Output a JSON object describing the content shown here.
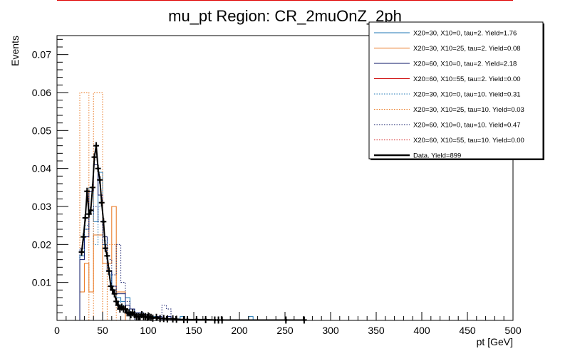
{
  "chart_data": {
    "type": "histogram",
    "title": "mu_pt Region: CR_2muOnZ_2ph",
    "xlabel": "pt [GeV]",
    "ylabel": "Events",
    "xlim": [
      0,
      500
    ],
    "ylim": [
      0,
      0.075
    ],
    "x_ticks": [
      "0",
      "50",
      "100",
      "150",
      "200",
      "250",
      "300",
      "350",
      "400",
      "450",
      "500"
    ],
    "y_ticks": [
      "0.01",
      "0.02",
      "0.03",
      "0.04",
      "0.05",
      "0.06",
      "0.07"
    ],
    "y_tick_values": [
      0.01,
      0.02,
      0.03,
      0.04,
      0.05,
      0.06,
      0.07
    ],
    "legend_position": "top-right",
    "series": [
      {
        "name": "X20=30, X10=0, tau=2. Yield=1.76",
        "color": "#1f77b4",
        "style": "solid",
        "bin_width": 5,
        "bins": [
          [
            25,
            0.017
          ],
          [
            30,
            0.024
          ],
          [
            35,
            0.035
          ],
          [
            40,
            0.026
          ],
          [
            45,
            0.039
          ],
          [
            50,
            0.02
          ],
          [
            55,
            0.013
          ],
          [
            60,
            0.008
          ],
          [
            65,
            0.006
          ],
          [
            70,
            0.005
          ],
          [
            75,
            0.006
          ],
          [
            80,
            0.003
          ],
          [
            85,
            0.002
          ],
          [
            90,
            0.002
          ],
          [
            95,
            0.001
          ],
          [
            105,
            0.001
          ],
          [
            135,
            0.001
          ],
          [
            210,
            0.001
          ]
        ]
      },
      {
        "name": "X20=30, X10=25, tau=2. Yield=0.08",
        "color": "#e8731a",
        "style": "solid",
        "bin_width": 5,
        "bins": [
          [
            25,
            0.0075
          ],
          [
            30,
            0.015
          ],
          [
            35,
            0.0075
          ],
          [
            40,
            0.0225
          ],
          [
            45,
            0.0225
          ],
          [
            50,
            0.015
          ],
          [
            55,
            0.015
          ],
          [
            60,
            0.03
          ],
          [
            65,
            0.0075
          ],
          [
            70,
            0.0075
          ]
        ]
      },
      {
        "name": "X20=60, X10=0, tau=2. Yield=2.18",
        "color": "#0a1466",
        "style": "solid",
        "bin_width": 5,
        "bins": [
          [
            25,
            0.016
          ],
          [
            30,
            0.022
          ],
          [
            35,
            0.034
          ],
          [
            40,
            0.041
          ],
          [
            45,
            0.033
          ],
          [
            50,
            0.022
          ],
          [
            55,
            0.013
          ],
          [
            60,
            0.009
          ],
          [
            65,
            0.007
          ],
          [
            70,
            0.007
          ],
          [
            75,
            0.004
          ],
          [
            80,
            0.003
          ],
          [
            85,
            0.002
          ],
          [
            90,
            0.002
          ],
          [
            95,
            0.0015
          ],
          [
            100,
            0.001
          ],
          [
            110,
            0.001
          ],
          [
            120,
            0.001
          ]
        ]
      },
      {
        "name": "X20=60, X10=55, tau=2. Yield=0.00",
        "color": "#cc0000",
        "style": "solid",
        "bin_width": 5,
        "bins": []
      },
      {
        "name": "X20=30, X10=0, tau=10. Yield=0.31",
        "color": "#1f77b4",
        "style": "dotted",
        "bin_width": 5,
        "bins": [
          [
            25,
            0.018
          ],
          [
            30,
            0.025
          ],
          [
            35,
            0.03
          ],
          [
            40,
            0.02
          ],
          [
            45,
            0.03
          ],
          [
            50,
            0.021
          ],
          [
            55,
            0.012
          ],
          [
            60,
            0.008
          ],
          [
            65,
            0.005
          ],
          [
            70,
            0.004
          ],
          [
            75,
            0.003
          ]
        ]
      },
      {
        "name": "X20=30, X10=25, tau=10. Yield=0.03",
        "color": "#e8731a",
        "style": "dotted",
        "bin_width": 5,
        "bins": [
          [
            25,
            0.06
          ],
          [
            30,
            0.06
          ],
          [
            35,
            0.0
          ],
          [
            40,
            0.06
          ],
          [
            45,
            0.06
          ],
          [
            50,
            0.0
          ],
          [
            55,
            0.02
          ],
          [
            60,
            0.02
          ],
          [
            65,
            0.0
          ],
          [
            70,
            0.0
          ]
        ]
      },
      {
        "name": "X20=60, X10=0, tau=10. Yield=0.47",
        "color": "#0a1466",
        "style": "dotted",
        "bin_width": 5,
        "bins": [
          [
            25,
            0.019
          ],
          [
            30,
            0.024
          ],
          [
            35,
            0.028
          ],
          [
            40,
            0.03
          ],
          [
            45,
            0.026
          ],
          [
            50,
            0.02
          ],
          [
            55,
            0.016
          ],
          [
            60,
            0.012
          ],
          [
            65,
            0.02
          ],
          [
            70,
            0.01
          ],
          [
            75,
            0.005
          ],
          [
            80,
            0.003
          ],
          [
            115,
            0.004
          ],
          [
            120,
            0.003
          ]
        ]
      },
      {
        "name": "X20=60, X10=55, tau=10. Yield=0.00",
        "color": "#cc0000",
        "style": "dotted",
        "bin_width": 5,
        "bins": []
      },
      {
        "name": "Data. Yield=899",
        "color": "#000000",
        "style": "data",
        "points": [
          [
            27,
            0.018
          ],
          [
            29,
            0.022
          ],
          [
            31,
            0.027
          ],
          [
            33,
            0.034
          ],
          [
            35,
            0.028
          ],
          [
            37,
            0.029
          ],
          [
            39,
            0.035
          ],
          [
            41,
            0.043
          ],
          [
            43,
            0.046
          ],
          [
            45,
            0.04
          ],
          [
            47,
            0.037
          ],
          [
            49,
            0.031
          ],
          [
            51,
            0.026
          ],
          [
            53,
            0.019
          ],
          [
            55,
            0.017
          ],
          [
            57,
            0.013
          ],
          [
            59,
            0.009
          ],
          [
            61,
            0.008
          ],
          [
            63,
            0.007
          ],
          [
            65,
            0.005
          ],
          [
            67,
            0.004
          ],
          [
            69,
            0.003
          ],
          [
            71,
            0.0035
          ],
          [
            73,
            0.003
          ],
          [
            75,
            0.003
          ],
          [
            77,
            0.002
          ],
          [
            79,
            0.002
          ],
          [
            81,
            0.0015
          ],
          [
            83,
            0.002
          ],
          [
            85,
            0.0015
          ],
          [
            87,
            0.001
          ],
          [
            89,
            0.001
          ],
          [
            91,
            0.001
          ],
          [
            93,
            0.0015
          ],
          [
            95,
            0.001
          ],
          [
            97,
            0.001
          ],
          [
            99,
            0.0008
          ],
          [
            101,
            0.001
          ],
          [
            103,
            0.0008
          ],
          [
            105,
            0.0006
          ],
          [
            109,
            0.0008
          ],
          [
            113,
            0.0005
          ],
          [
            117,
            0.0005
          ],
          [
            121,
            0.0004
          ],
          [
            127,
            0.0004
          ],
          [
            131,
            0.0003
          ],
          [
            139,
            0.0002
          ],
          [
            143,
            0.0002
          ],
          [
            153,
            0.0002
          ],
          [
            163,
            0.0002
          ],
          [
            173,
            0.0001
          ],
          [
            177,
            0.0001
          ],
          [
            181,
            0.0001
          ],
          [
            251,
            0.0001
          ],
          [
            271,
            0.0001
          ]
        ]
      }
    ]
  }
}
